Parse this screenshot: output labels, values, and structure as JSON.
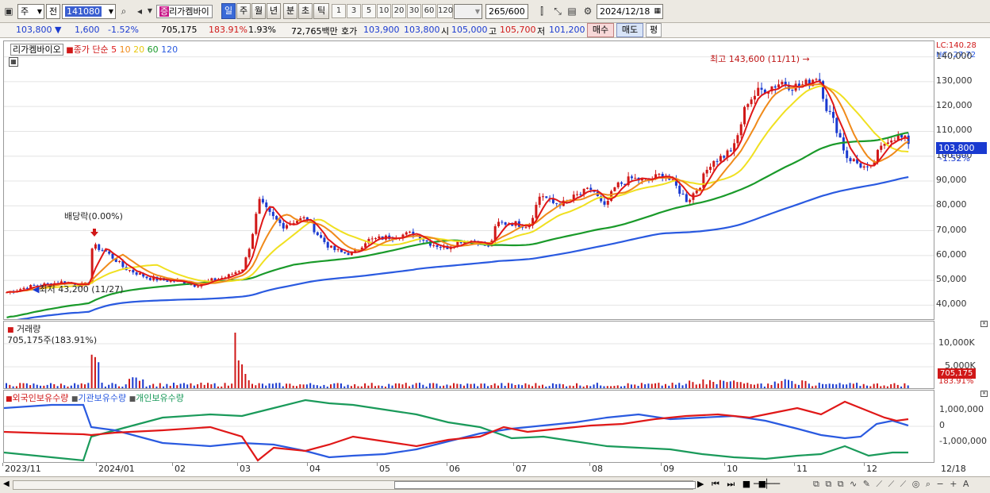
{
  "toolbar": {
    "market": "주",
    "mode": "전",
    "code": "141080",
    "name": "리가켐바이",
    "periods": [
      "일",
      "주",
      "월",
      "년",
      "분",
      "초",
      "틱"
    ],
    "active_period": "일",
    "intervals": [
      "1",
      "3",
      "5",
      "10",
      "20",
      "30",
      "60",
      "120"
    ],
    "count": "265",
    "count_total": "/600",
    "date": "2024/12/18"
  },
  "quote": {
    "price": "103,800",
    "change": "1,600",
    "change_pct": "-1.52%",
    "volume": "705,175",
    "volume_pct": "183.91%",
    "turnover": "1.93%",
    "amount": "72,765백만",
    "ask_label": "호가",
    "ask1": "103,900",
    "ask2": "103,800",
    "open_label": "시",
    "open": "105,000",
    "high_label": "고",
    "high": "105,700",
    "low_label": "저",
    "low": "101,200",
    "buy": "매수",
    "sell": "매도",
    "eval": "평"
  },
  "price_panel": {
    "stock_tag": "리가켐바이오",
    "legend_prefix": "종가 단순",
    "ma_periods": [
      "5",
      "10",
      "20",
      "60",
      "120"
    ],
    "ma_colors": [
      "#e01818",
      "#f08a1a",
      "#f0e020",
      "#1a9a2a",
      "#2a5ae0"
    ],
    "max_label": "최고 143,600 (11/11) →",
    "min_label": "최저 43,200 (11/27)",
    "div_label": "배당락(0.00%)",
    "lc": "LC:140.28",
    "hc": "HC:-27.72",
    "last_price": "103,800",
    "last_pct": "-1.52%",
    "yticks": [
      "140,000",
      "130,000",
      "120,000",
      "110,000",
      "100,000",
      "90,000",
      "80,000",
      "70,000",
      "60,000",
      "50,000",
      "40,000"
    ]
  },
  "volume_panel": {
    "title": "거래량",
    "value": "705,175주(183.91%)",
    "yticks": [
      "10,000K",
      "5,000K"
    ],
    "last_vol": "705,175",
    "last_pct": "183.91%"
  },
  "holding_panel": {
    "series": [
      "외국인보유수량",
      "기관보유수량",
      "개인보유수량"
    ],
    "series_colors": [
      "#e01818",
      "#2a5ae0",
      "#1a9a5a"
    ],
    "yticks": [
      "1,000,000",
      "0",
      "-1,000,000"
    ]
  },
  "xaxis": {
    "labels": [
      "2023/11",
      "2024/01",
      "02",
      "03",
      "04",
      "05",
      "06",
      "07",
      "08",
      "09",
      "10",
      "11",
      "12",
      "12/18"
    ]
  },
  "chart_data": {
    "type": "candlestick",
    "ylim": [
      35000,
      145000
    ],
    "close_trend": [
      [
        0,
        45000
      ],
      [
        25,
        47000
      ],
      [
        40,
        48000
      ],
      [
        55,
        48500
      ],
      [
        75,
        49500
      ],
      [
        90,
        48000
      ],
      [
        105,
        48500
      ],
      [
        110,
        64000
      ],
      [
        125,
        62000
      ],
      [
        140,
        58000
      ],
      [
        150,
        55000
      ],
      [
        165,
        53000
      ],
      [
        180,
        51000
      ],
      [
        200,
        50000
      ],
      [
        220,
        49500
      ],
      [
        240,
        48000
      ],
      [
        260,
        50000
      ],
      [
        280,
        51500
      ],
      [
        300,
        55000
      ],
      [
        310,
        66000
      ],
      [
        320,
        82000
      ],
      [
        335,
        76000
      ],
      [
        350,
        72000
      ],
      [
        365,
        74000
      ],
      [
        380,
        75000
      ],
      [
        395,
        68000
      ],
      [
        410,
        63000
      ],
      [
        425,
        61000
      ],
      [
        440,
        61000
      ],
      [
        455,
        66000
      ],
      [
        475,
        67000
      ],
      [
        495,
        68000
      ],
      [
        515,
        69000
      ],
      [
        535,
        65000
      ],
      [
        555,
        63000
      ],
      [
        575,
        66000
      ],
      [
        595,
        66000
      ],
      [
        610,
        63000
      ],
      [
        620,
        73000
      ],
      [
        640,
        73000
      ],
      [
        660,
        72000
      ],
      [
        675,
        85000
      ],
      [
        690,
        81000
      ],
      [
        705,
        81000
      ],
      [
        720,
        84000
      ],
      [
        740,
        87000
      ],
      [
        755,
        79000
      ],
      [
        770,
        88000
      ],
      [
        790,
        91000
      ],
      [
        810,
        90000
      ],
      [
        830,
        93000
      ],
      [
        845,
        88000
      ],
      [
        860,
        82000
      ],
      [
        875,
        88000
      ],
      [
        890,
        98000
      ],
      [
        905,
        100000
      ],
      [
        920,
        104000
      ],
      [
        935,
        122000
      ],
      [
        950,
        126000
      ],
      [
        965,
        128000
      ],
      [
        980,
        130000
      ],
      [
        995,
        128000
      ],
      [
        1010,
        129000
      ],
      [
        1025,
        133000
      ],
      [
        1035,
        120000
      ],
      [
        1050,
        110000
      ],
      [
        1060,
        100000
      ],
      [
        1075,
        97000
      ],
      [
        1090,
        94000
      ],
      [
        1100,
        101000
      ],
      [
        1112,
        107000
      ],
      [
        1125,
        108000
      ],
      [
        1138,
        106000
      ],
      [
        1145,
        103800
      ]
    ]
  }
}
